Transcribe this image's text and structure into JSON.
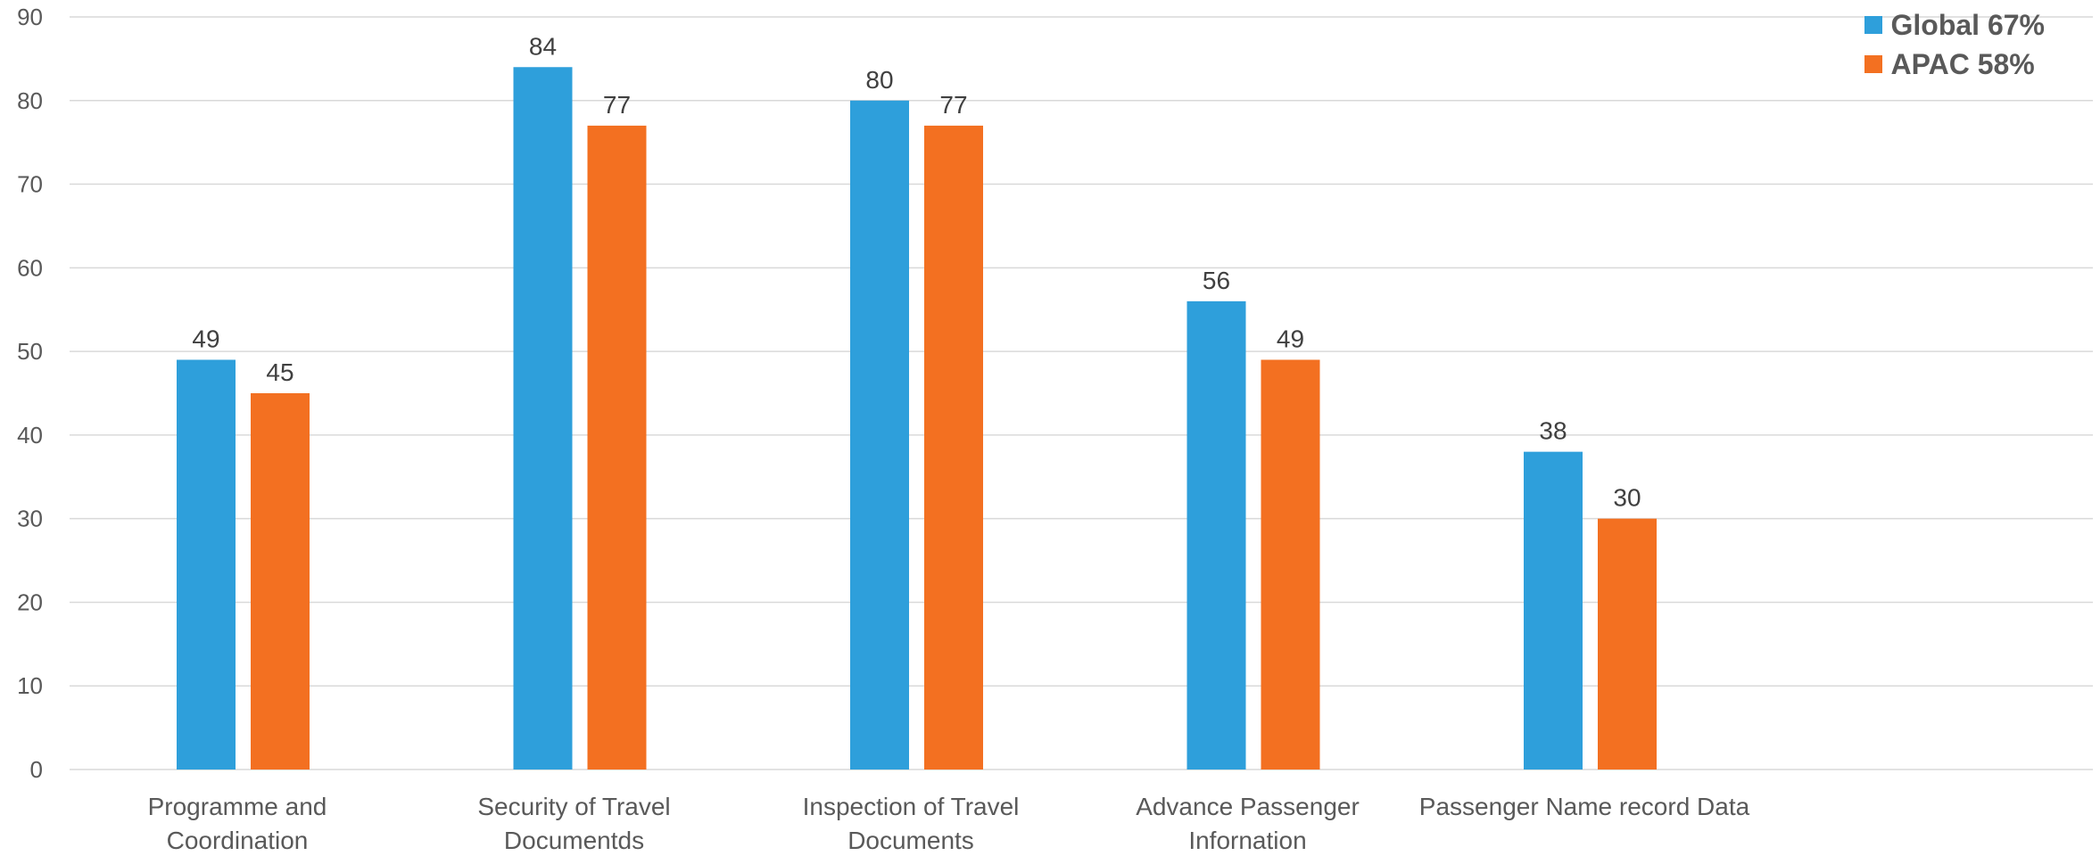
{
  "chart_data": {
    "type": "bar",
    "categories": [
      [
        "Programme and",
        "Coordination"
      ],
      [
        "Security of Travel",
        "Documentds"
      ],
      [
        "Inspection of Travel",
        "Documents"
      ],
      [
        "Advance Passenger",
        "Infornation"
      ],
      [
        "Passenger Name record Data"
      ]
    ],
    "series": [
      {
        "name": "Global 67%",
        "values": [
          49,
          84,
          80,
          56,
          38
        ],
        "color": "#2E9FDB"
      },
      {
        "name": "APAC 58%",
        "values": [
          45,
          77,
          77,
          49,
          30
        ],
        "color": "#F37021"
      }
    ],
    "ylim": [
      0,
      90
    ],
    "yticks": [
      0,
      10,
      20,
      30,
      40,
      50,
      60,
      70,
      80,
      90
    ],
    "grid": true,
    "legend_position": "top-right"
  }
}
